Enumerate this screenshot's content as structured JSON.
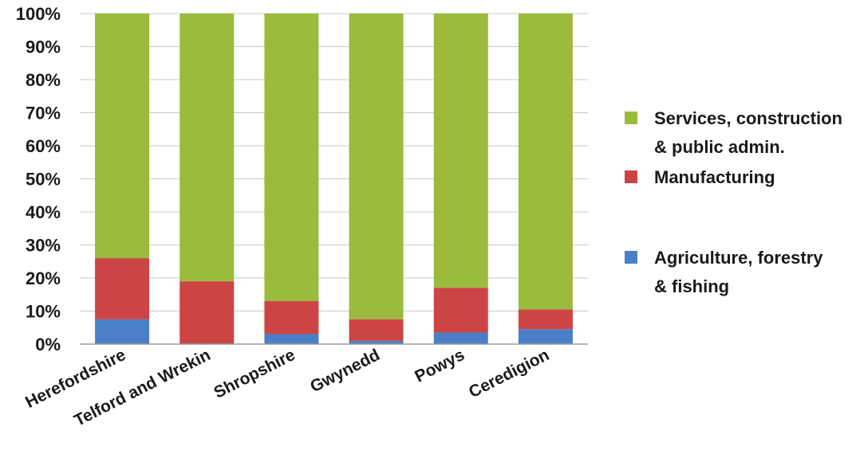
{
  "chart_data": {
    "type": "bar",
    "stacked": true,
    "percent_stacked": true,
    "categories": [
      "Herefordshire",
      "Telford and Wrekin",
      "Shropshire",
      "Gwynedd",
      "Powys",
      "Ceredigion"
    ],
    "series": [
      {
        "name": "Agriculture, forestry & fishing",
        "legend_lines": [
          "Agriculture, forestry",
          "& fishing"
        ],
        "color": "#4a7fc8",
        "values": [
          7.5,
          0,
          3,
          1,
          3.5,
          4.5
        ]
      },
      {
        "name": "Manufacturing",
        "legend_lines": [
          "Manufacturing"
        ],
        "color": "#cc4444",
        "values": [
          18.5,
          19,
          10,
          6.5,
          13.5,
          6
        ]
      },
      {
        "name": "Services, construction & public admin.",
        "legend_lines": [
          "Services, construction",
          "& public admin."
        ],
        "color": "#9bbb3c",
        "values": [
          74,
          81,
          87,
          92.5,
          83,
          89.5
        ]
      }
    ],
    "ylim": [
      0,
      100
    ],
    "yticks": [
      "0%",
      "10%",
      "20%",
      "30%",
      "40%",
      "50%",
      "60%",
      "70%",
      "80%",
      "90%",
      "100%"
    ],
    "grid": true,
    "legend_position": "right",
    "legend_order": [
      2,
      1,
      0
    ]
  }
}
